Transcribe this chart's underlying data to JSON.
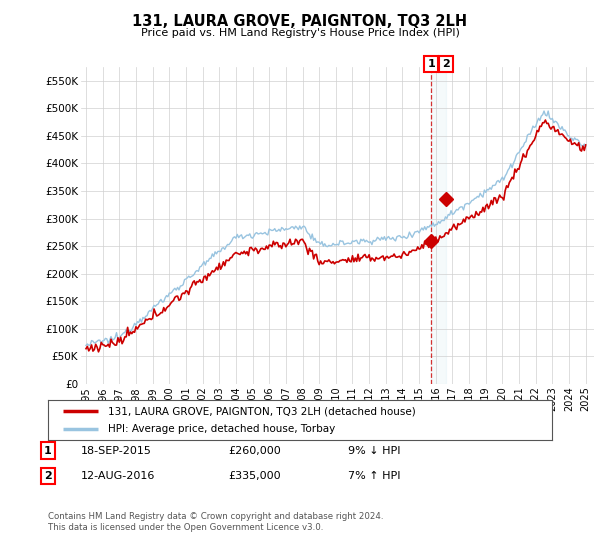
{
  "title": "131, LAURA GROVE, PAIGNTON, TQ3 2LH",
  "subtitle": "Price paid vs. HM Land Registry's House Price Index (HPI)",
  "ylim": [
    0,
    570000
  ],
  "xlim_start": 1994.7,
  "xlim_end": 2025.5,
  "legend_line1": "131, LAURA GROVE, PAIGNTON, TQ3 2LH (detached house)",
  "legend_line2": "HPI: Average price, detached house, Torbay",
  "transaction1_date": "18-SEP-2015",
  "transaction1_price": "£260,000",
  "transaction1_hpi": "9% ↓ HPI",
  "transaction2_date": "12-AUG-2016",
  "transaction2_price": "£335,000",
  "transaction2_hpi": "7% ↑ HPI",
  "footnote": "Contains HM Land Registry data © Crown copyright and database right 2024.\nThis data is licensed under the Open Government Licence v3.0.",
  "line_color_red": "#cc0000",
  "line_color_blue": "#99c4e0",
  "bg_color": "#ffffff",
  "grid_color": "#d0d0d0",
  "transaction_x1": 2015.72,
  "transaction_x2": 2016.61,
  "transaction_y1": 260000,
  "transaction_y2": 335000
}
